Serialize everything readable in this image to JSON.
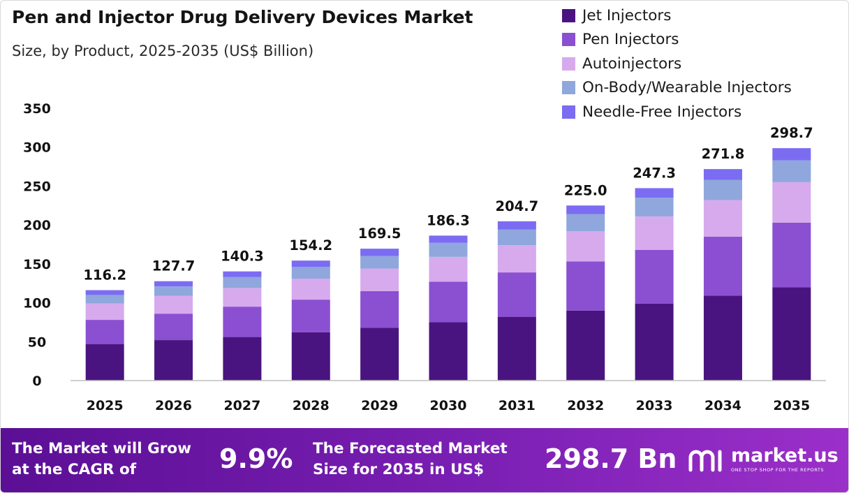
{
  "header": {
    "title": "Pen and Injector Drug Delivery Devices Market",
    "subtitle": "Size, by Product, 2025-2035 (US$ Billion)"
  },
  "legend": [
    {
      "label": "Jet Injectors",
      "color": "#4a1480"
    },
    {
      "label": "Pen Injectors",
      "color": "#8b4fd1"
    },
    {
      "label": "Autoinjectors",
      "color": "#d6aaed"
    },
    {
      "label": "On-Body/Wearable Injectors",
      "color": "#8fa7dc"
    },
    {
      "label": "Needle-Free Injectors",
      "color": "#7b6cf2"
    }
  ],
  "chart_data": {
    "type": "bar",
    "stacked": true,
    "categories": [
      "2025",
      "2026",
      "2027",
      "2028",
      "2029",
      "2030",
      "2031",
      "2032",
      "2033",
      "2034",
      "2035"
    ],
    "totals": [
      "116.2",
      "127.7",
      "140.3",
      "154.2",
      "169.5",
      "186.3",
      "204.7",
      "225.0",
      "247.3",
      "271.8",
      "298.7"
    ],
    "series": [
      {
        "name": "Jet Injectors",
        "color": "#4a1480",
        "values": [
          47,
          52,
          56,
          62,
          68,
          75,
          82,
          90,
          99,
          109,
          120
        ]
      },
      {
        "name": "Pen Injectors",
        "color": "#8b4fd1",
        "values": [
          31,
          34,
          39,
          42,
          47,
          52,
          57,
          63,
          69,
          76,
          83
        ]
      },
      {
        "name": "Autoinjectors",
        "color": "#d6aaed",
        "values": [
          21,
          23,
          24,
          27,
          29,
          32,
          35,
          39,
          43,
          47,
          52
        ]
      },
      {
        "name": "On-Body/Wearable Injectors",
        "color": "#8fa7dc",
        "values": [
          11,
          12,
          14,
          15,
          16,
          18,
          20,
          22,
          24,
          26,
          28
        ]
      },
      {
        "name": "Needle-Free Injectors",
        "color": "#7b6cf2",
        "values": [
          6.2,
          6.7,
          7.3,
          8.2,
          9.5,
          9.3,
          10.7,
          11.0,
          12.3,
          13.8,
          15.7
        ]
      }
    ],
    "yticks": [
      0,
      50,
      100,
      150,
      200,
      250,
      300,
      350
    ],
    "ylim": [
      0,
      350
    ],
    "grid": false,
    "legend_position": "top-right"
  },
  "banner": {
    "cagr_text_1": "The Market will Grow",
    "cagr_text_2": "at the CAGR of",
    "cagr_value": "9.9%",
    "forecast_text_1": "The Forecasted Market",
    "forecast_text_2": "Size for 2035 in US$",
    "forecast_value": "298.7 Bn",
    "brand_name": "market.us",
    "brand_tagline": "ONE STOP SHOP FOR THE REPORTS"
  }
}
